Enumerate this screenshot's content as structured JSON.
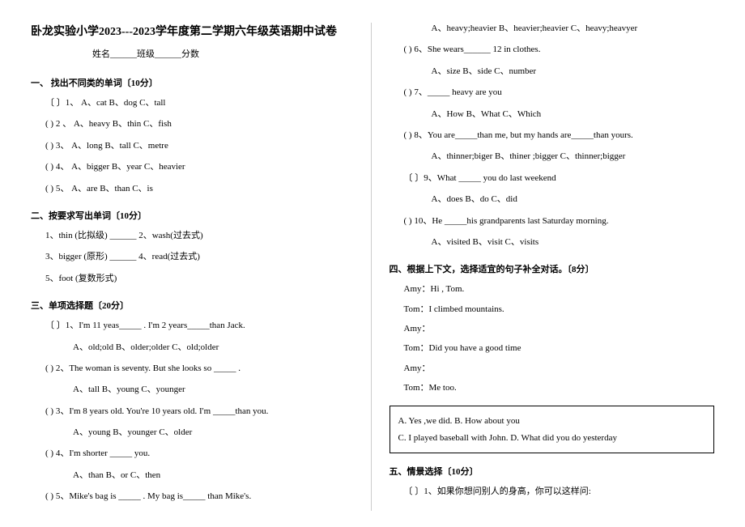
{
  "title": "卧龙实验小学2023---2023学年度第二学期六年级英语期中试卷",
  "subtitle": "姓名______班级______分数",
  "sec1": {
    "header": "一、  找出不同类的单词〔10分〕",
    "q1": "〔   〕1、   A、cat        B、dog             C、tall",
    "q2": "(    ) 2 、   A、heavy        B、thin        C、fish",
    "q3": "(    ) 3、   A、long        B、tall        C、metre",
    "q4": "(    ) 4、   A、bigger       B、year         C、heavier",
    "q5": "(    )  5、   A、are        B、than         C、is"
  },
  "sec2": {
    "header": "二、按要求写出单词〔10分〕",
    "l1": "1、thin (比拟级) ______             2、wash(过去式)",
    "l2": "3、bigger (原形) ______           4、read(过去式)",
    "l3": "5、foot (复数形式)"
  },
  "sec3": {
    "header": "三、单项选择题〔20分〕",
    "q1": "〔  〕1、I'm  11  yeas_____ . I'm  2  years_____than   Jack.",
    "q1o": "A、old;old      B、older;older    C、old;older",
    "q2": "(    ) 2、The  woman  is  seventy.  But  she  looks  so  _____ .",
    "q2o": "A、tall     B、young     C、younger",
    "q3": "(    ) 3、I'm  8  years  old.  You're  10  years  old.  I'm  _____than  you.",
    "q3o": "A、young      B、younger    C、older",
    "q4": "(    ) 4、I'm  shorter  _____ you.",
    "q4o": "A、than       B、or       C、then",
    "q5": "(    ) 5、Mike's  bag  is  _____ . My  bag  is_____ than  Mike's.",
    "q5o": "A、heavy;heavier      B、heavier;heavier  C、heavy;heavyer",
    "q6": "(    ) 6、She  wears______  12  in  clothes.",
    "q6o": "A、size       B、side   C、number",
    "q7": "(    ) 7、_____  heavy  are  you",
    "q7o": "A、How    B、What      C、Which",
    "q8": "(    ) 8、You  are_____than  me,  but  my  hands  are_____than  yours.",
    "q8o": "A、thinner;biger      B、thiner ;bigger  C、thinner;bigger",
    "q9": "〔   〕9、What  _____  you  do  last  weekend",
    "q9o": "A、does        B、do    C、did",
    "q10": "(    ) 10、He  _____his  grandparents  last  Saturday  morning.",
    "q10o": "A、visited       B、visit      C、visits"
  },
  "sec4": {
    "header": "四、根据上下文，选择适宜的句子补全对话。〔8分〕",
    "l1": "Amy：Hi , Tom.",
    "l2": "Tom：I  climbed  mountains.",
    "l3": "Amy：",
    "l4": "Tom：Did  you  have  a  good  time",
    "l5": "Amy：",
    "l6": "Tom：Me  too.",
    "box1": "A. Yes ,we  did.                  B. How  about  you",
    "box2": "C. I  played  baseball  with  John.    D. What  did  you  do  yesterday"
  },
  "sec5": {
    "header": "五、情景选择〔10分〕",
    "q1": "〔   〕1、如果你想问别人的身高，你可以这样问:"
  }
}
